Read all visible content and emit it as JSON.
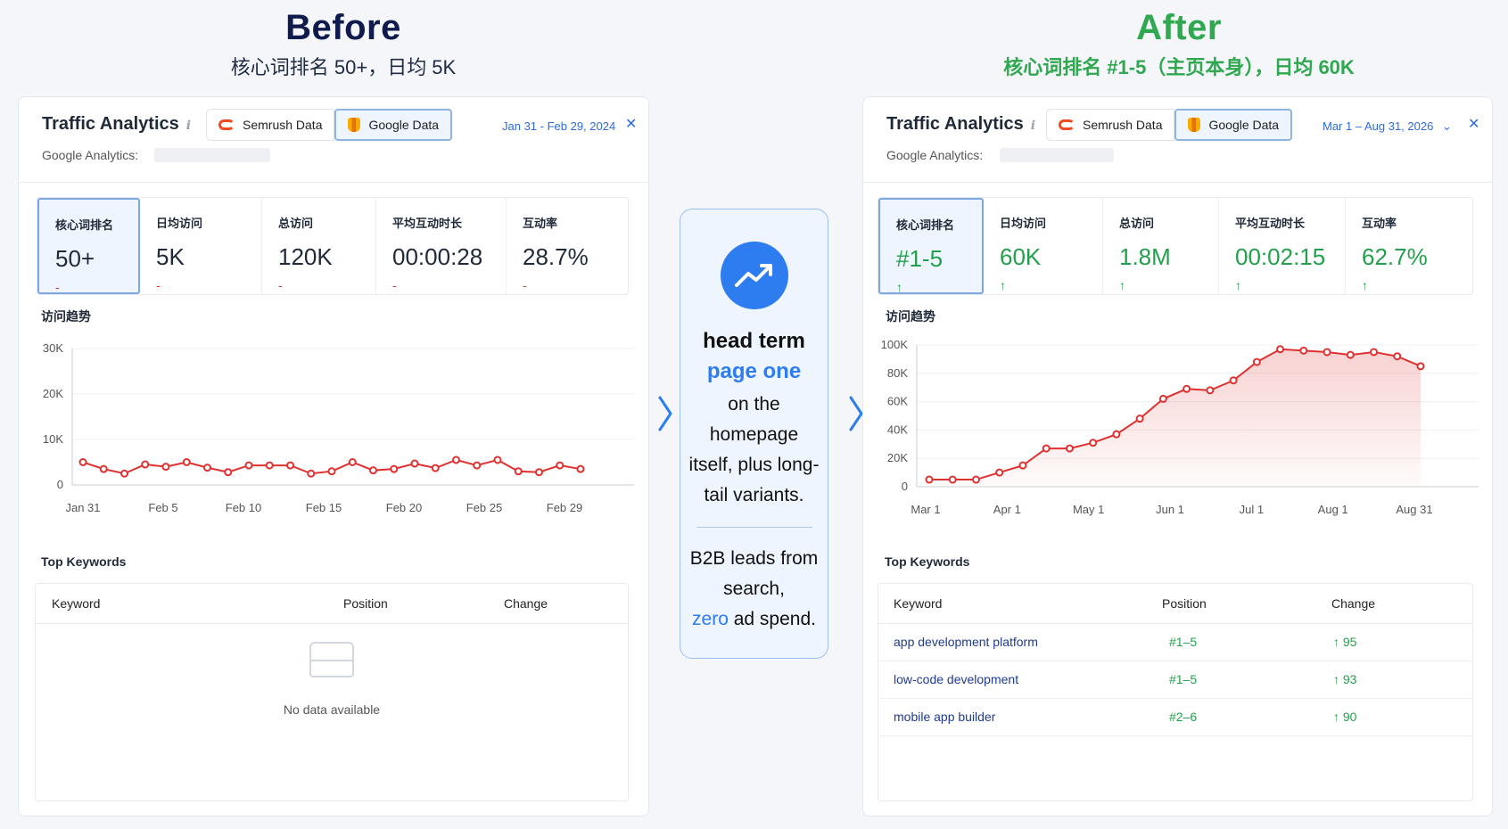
{
  "before": {
    "heading": "Before",
    "subheading": "核心词排名 50+，日均 5K",
    "panel": {
      "title": "Traffic Analytics",
      "tabs": [
        "Semrush Data",
        "Google Data"
      ],
      "date_range": "Jan 31 - Feb 29, 2024",
      "ga_label": "Google Analytics:",
      "metrics": [
        {
          "label": "核心词排名",
          "value": "50+",
          "indicator": "-"
        },
        {
          "label": "日均访问",
          "value": "5K",
          "indicator": "-"
        },
        {
          "label": "总访问",
          "value": "120K",
          "indicator": "-"
        },
        {
          "label": "平均互动时长",
          "value": "00:00:28",
          "indicator": "-"
        },
        {
          "label": "互动率",
          "value": "28.7%",
          "indicator": "-"
        }
      ],
      "trend_title": "访问趋势",
      "keywords_title": "Top Keywords",
      "table_headers": [
        "Keyword",
        "Position",
        "Change"
      ],
      "empty_text": "No data available"
    }
  },
  "after": {
    "heading": "After",
    "subheading": "核心词排名 #1-5（主页本身），日均 60K",
    "panel": {
      "title": "Traffic Analytics",
      "tabs": [
        "Semrush Data",
        "Google Data"
      ],
      "date_range": "Mar 1 – Aug 31, 2026",
      "ga_label": "Google Analytics:",
      "metrics": [
        {
          "label": "核心词排名",
          "value": "#1-5",
          "indicator": "↑"
        },
        {
          "label": "日均访问",
          "value": "60K",
          "indicator": "↑"
        },
        {
          "label": "总访问",
          "value": "1.8M",
          "indicator": "↑"
        },
        {
          "label": "平均互动时长",
          "value": "00:02:15",
          "indicator": "↑"
        },
        {
          "label": "互动率",
          "value": "62.7%",
          "indicator": "↑"
        }
      ],
      "trend_title": "访问趋势",
      "keywords_title": "Top Keywords",
      "table_headers": [
        "Keyword",
        "Position",
        "Change"
      ],
      "keywords": [
        {
          "keyword": "app development platform",
          "position": "#1–5",
          "change": "↑ 95"
        },
        {
          "keyword": "low-code development",
          "position": "#1–5",
          "change": "↑ 93"
        },
        {
          "keyword": "mobile app builder",
          "position": "#2–6",
          "change": "↑ 90"
        }
      ]
    }
  },
  "middle": {
    "line1": "head term",
    "line2": "page one",
    "line3": "on the homepage itself, plus long-tail variants.",
    "line4": "B2B leads from search,",
    "zero": "zero",
    "ad_spend": " ad spend."
  },
  "colors": {
    "red": "#e03131",
    "green": "#2fa84f",
    "blue": "#2d7cf0"
  },
  "chart_data": [
    {
      "type": "line",
      "ylim": [
        0,
        30000
      ],
      "yticks": [
        "0",
        "10K",
        "20K",
        "30K"
      ],
      "xticks": [
        "Jan 31",
        "Feb 5",
        "Feb 10",
        "Feb 15",
        "Feb 20",
        "Feb 25",
        "Feb 29"
      ],
      "series": [
        {
          "values": [
            5000,
            3500,
            2500,
            4500,
            4000,
            5000,
            3800,
            2800,
            4300,
            4300,
            4300,
            2500,
            3000,
            5000,
            3200,
            3500,
            4700,
            3700,
            5500,
            4300,
            5500,
            3000,
            2800,
            4300,
            3500
          ]
        }
      ]
    },
    {
      "type": "area",
      "ylim": [
        0,
        100000
      ],
      "yticks": [
        "0",
        "20K",
        "40K",
        "60K",
        "80K",
        "100K"
      ],
      "xticks": [
        "Mar 1",
        "Apr 1",
        "May 1",
        "Jun 1",
        "Jul 1",
        "Aug 1",
        "Aug 31"
      ],
      "series": [
        {
          "values": [
            5000,
            5000,
            5000,
            10000,
            15000,
            27000,
            27000,
            31000,
            37000,
            48000,
            62000,
            69000,
            68000,
            75000,
            88000,
            97000,
            96000,
            95000,
            93000,
            95000,
            92000,
            85000
          ]
        }
      ]
    }
  ]
}
